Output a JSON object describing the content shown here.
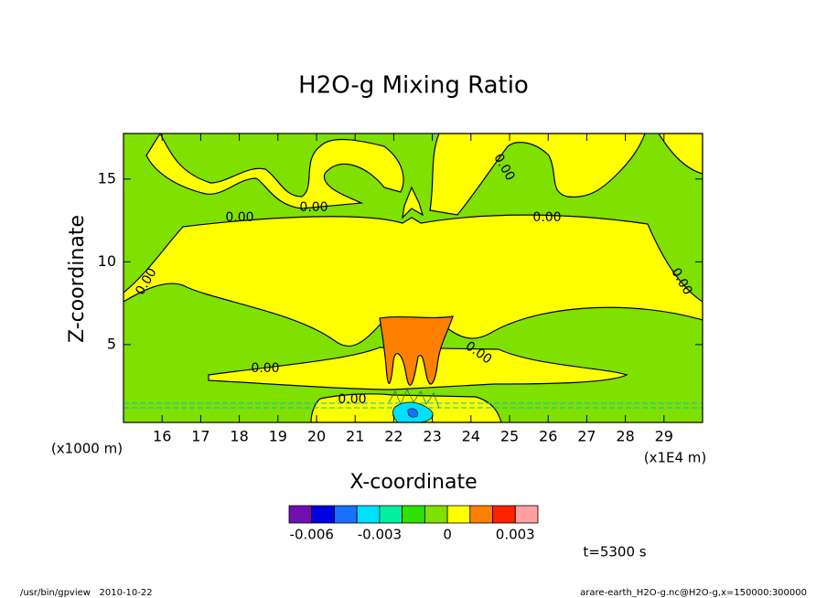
{
  "chart_data": {
    "type": "contour",
    "title": "H2O-g Mixing Ratio",
    "x_label": "X-coordinate",
    "y_label": "Z-coordinate",
    "x_unit": "(x1E4 m)",
    "y_unit": "(x1000 m)",
    "xlim": [
      15,
      30
    ],
    "xticks": [
      16,
      17,
      18,
      19,
      20,
      21,
      22,
      23,
      24,
      25,
      26,
      27,
      28,
      29
    ],
    "ylim": [
      0.3,
      17.75
    ],
    "yticks": [
      5,
      10,
      15
    ],
    "contour_labels": [
      "0.00",
      "0.00",
      "0.00",
      "0.00",
      "0.00",
      "0.00",
      "0.00",
      "0.00",
      "0.00"
    ],
    "colorbar": {
      "colors": [
        "#7010b0",
        "#0000e0",
        "#1870ff",
        "#00e0ff",
        "#00f0a0",
        "#30e000",
        "#80e000",
        "#ffff00",
        "#ff8000",
        "#ff2000",
        "#ffa0a0"
      ],
      "levels": [
        -0.006,
        -0.005,
        -0.004,
        -0.003,
        -0.002,
        -0.001,
        0,
        0.001,
        0.002,
        0.003
      ],
      "ticks": [
        -0.006,
        -0.003,
        0,
        0.003
      ]
    },
    "annotation": "t=5300 s"
  },
  "footer": {
    "left": "/usr/bin/gpview   2010-10-22",
    "right": "arare-earth_H2O-g.nc@H2O-g,x=150000:300000"
  }
}
